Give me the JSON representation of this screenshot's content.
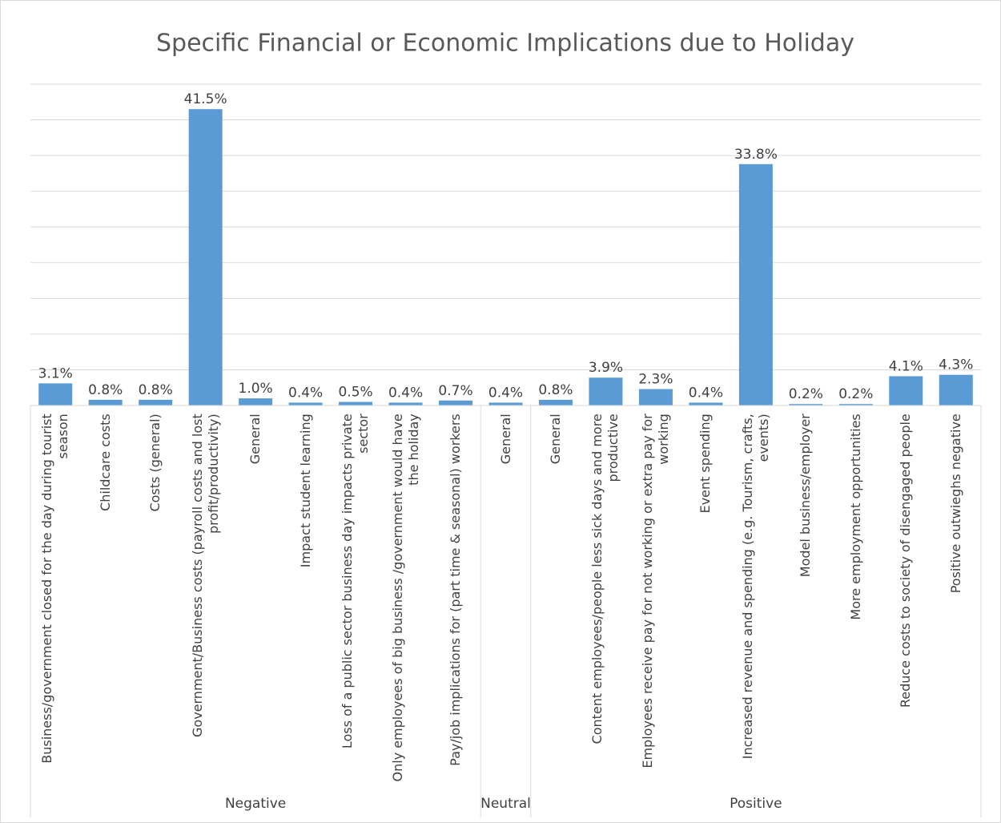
{
  "chart_data": {
    "type": "bar",
    "title": "Specific Financial or Economic Implications due to Holiday",
    "color": "#5b9bd5",
    "ylim": [
      0,
      45
    ],
    "yticks": [
      0,
      5,
      10,
      15,
      20,
      25,
      30,
      35,
      40,
      45
    ],
    "grid": true,
    "groups": [
      {
        "name": "Negative",
        "categories": [
          "Business/government closed for the day during tourist season",
          "Childcare costs",
          "Costs (general)",
          "Government/Business costs (payroll costs and lost profit/productivity)",
          "General",
          "Impact student learning",
          "Loss of a public sector business day impacts private sector",
          "Only employees of big business /government would have the holiday",
          "Pay/job implications for (part time & seasonal) workers"
        ],
        "values": [
          3.1,
          0.8,
          0.8,
          41.5,
          1.0,
          0.4,
          0.5,
          0.4,
          0.7
        ],
        "value_labels": [
          "3.1%",
          "0.8%",
          "0.8%",
          "41.5%",
          "1.0%",
          "0.4%",
          "0.5%",
          "0.4%",
          "0.7%"
        ]
      },
      {
        "name": "Neutral",
        "categories": [
          "General"
        ],
        "values": [
          0.4
        ],
        "value_labels": [
          "0.4%"
        ]
      },
      {
        "name": "Positive",
        "categories": [
          "General",
          "Content employees/people less sick days and more productive",
          "Employees receive pay for not working or extra pay for working",
          "Event spending",
          "Increased revenue and spending (e.g. Tourism, crafts, events)",
          "Model business/employer",
          "More employment opportunities",
          "Reduce costs to society of disengaged people",
          "Positive outwieghs negative"
        ],
        "values": [
          0.8,
          3.9,
          2.3,
          0.4,
          33.8,
          0.2,
          0.2,
          4.1,
          4.3
        ],
        "value_labels": [
          "0.8%",
          "3.9%",
          "2.3%",
          "0.4%",
          "33.8%",
          "0.2%",
          "0.2%",
          "4.1%",
          "4.3%"
        ]
      }
    ]
  }
}
